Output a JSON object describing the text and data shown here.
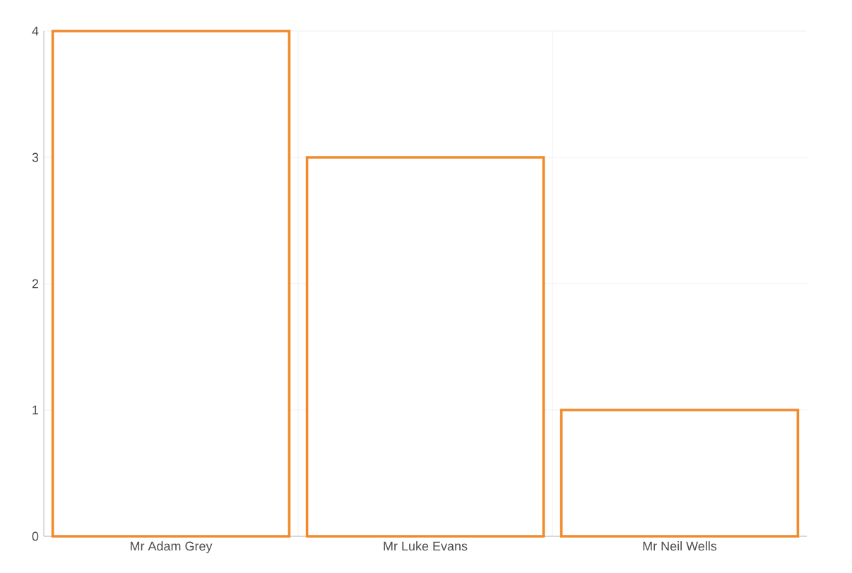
{
  "chart_data": {
    "type": "bar",
    "categories": [
      "Mr Adam Grey",
      "Mr Luke Evans",
      "Mr Neil Wells"
    ],
    "values": [
      4,
      3,
      1
    ],
    "color": "#f08a2c",
    "ylim": [
      0,
      4
    ],
    "yticks": [
      0,
      1,
      2,
      3,
      4
    ],
    "grid": true
  }
}
